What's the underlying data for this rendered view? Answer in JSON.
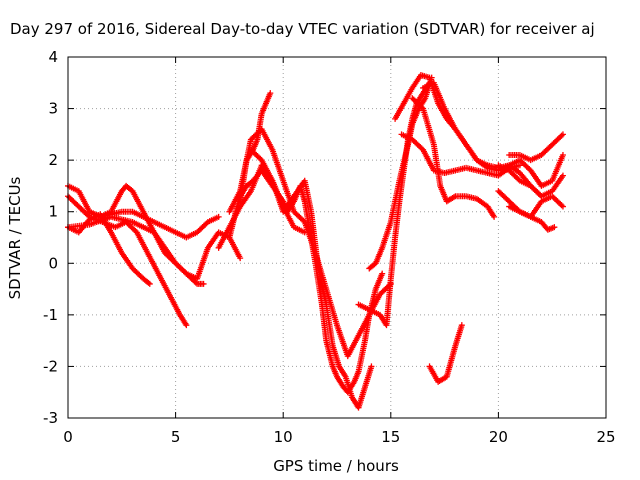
{
  "chart_data": {
    "type": "scatter",
    "title": "Day 297 of 2016, Sidereal Day-to-day VTEC variation (SDTVAR) for receiver aj",
    "xlabel": "GPS time / hours",
    "ylabel": "SDTVAR / TECUs",
    "xlim": [
      0,
      25
    ],
    "ylim": [
      -3,
      4
    ],
    "xticks": [
      "0",
      "5",
      "10",
      "15",
      "20",
      "25"
    ],
    "yticks": [
      "-3",
      "-2",
      "-1",
      "0",
      "1",
      "2",
      "3",
      "4"
    ],
    "grid": true,
    "legend": "none",
    "marker": "plus",
    "color": "#ff0000",
    "series": [
      {
        "x": [
          0.0,
          0.5,
          1.0,
          1.6,
          2.2,
          2.7,
          3.2,
          3.7,
          4.2,
          4.7,
          5.2,
          5.5
        ],
        "y": [
          1.3,
          1.1,
          0.9,
          0.8,
          0.7,
          0.8,
          0.6,
          0.2,
          -0.2,
          -0.6,
          -1.0,
          -1.2
        ]
      },
      {
        "x": [
          0.0,
          0.5,
          1.0,
          1.5,
          2.0,
          2.5,
          2.7,
          3.0,
          3.5,
          4.0,
          4.5,
          5.0,
          5.5,
          6.0,
          6.3
        ],
        "y": [
          1.5,
          1.4,
          1.0,
          0.9,
          1.0,
          1.4,
          1.5,
          1.4,
          1.0,
          0.6,
          0.3,
          0.0,
          -0.2,
          -0.4,
          -0.4
        ]
      },
      {
        "x": [
          0.0,
          0.5,
          1.0,
          1.5,
          2.0,
          2.5,
          3.0,
          3.5,
          3.8
        ],
        "y": [
          0.7,
          0.6,
          0.85,
          0.95,
          0.6,
          0.2,
          -0.1,
          -0.3,
          -0.4
        ]
      },
      {
        "x": [
          1.0,
          1.5,
          2.0,
          2.5,
          3.0,
          3.5,
          4.0,
          4.5,
          5.0,
          5.5,
          6.0,
          6.5,
          7.0
        ],
        "y": [
          1.0,
          0.9,
          0.95,
          1.0,
          1.0,
          0.9,
          0.8,
          0.7,
          0.6,
          0.5,
          0.6,
          0.8,
          0.9
        ]
      },
      {
        "x": [
          0.0,
          1.0,
          2.0,
          3.0,
          4.0,
          4.5,
          5.0,
          5.5,
          6.0,
          6.5,
          7.0,
          7.5,
          8.0
        ],
        "y": [
          0.7,
          0.75,
          0.9,
          0.8,
          0.6,
          0.2,
          0.0,
          -0.2,
          -0.3,
          0.3,
          0.6,
          0.5,
          0.1
        ]
      },
      {
        "x": [
          7.5,
          7.8,
          8.0,
          8.3,
          8.6,
          9.0,
          9.5,
          10.0,
          10.2,
          10.5,
          10.8,
          11.0,
          11.5,
          11.8,
          12.0,
          12.3,
          12.5,
          12.8,
          13.0,
          13.3,
          13.5,
          13.8,
          14.0,
          14.3,
          14.6
        ],
        "y": [
          0.5,
          1.0,
          1.3,
          1.5,
          1.6,
          1.8,
          1.5,
          1.2,
          1.0,
          1.2,
          1.5,
          1.2,
          0.0,
          -0.8,
          -1.5,
          -2.0,
          -2.2,
          -2.4,
          -2.5,
          -2.3,
          -2.1,
          -1.5,
          -1.0,
          -0.5,
          -0.2
        ]
      },
      {
        "x": [
          8.0,
          8.3,
          8.6,
          8.8,
          9.0,
          9.2,
          9.4
        ],
        "y": [
          1.2,
          2.0,
          2.2,
          2.4,
          2.9,
          3.1,
          3.3
        ]
      },
      {
        "x": [
          8.5,
          9.0,
          9.5,
          10.0,
          10.5,
          11.0,
          11.3,
          11.6,
          12.0,
          12.3,
          12.6,
          12.9,
          13.2,
          13.5,
          13.8,
          14.1
        ],
        "y": [
          2.2,
          2.0,
          1.6,
          1.0,
          1.3,
          1.6,
          1.0,
          0.0,
          -0.8,
          -1.6,
          -2.0,
          -2.2,
          -2.6,
          -2.8,
          -2.4,
          -2.0
        ]
      },
      {
        "x": [
          7.0,
          7.5,
          8.0,
          8.5,
          9.0,
          9.5,
          10.0,
          10.5,
          11.0
        ],
        "y": [
          0.3,
          0.7,
          1.1,
          1.4,
          1.9,
          1.6,
          1.1,
          0.7,
          0.6
        ]
      },
      {
        "x": [
          7.5,
          8.0,
          8.5,
          9.0,
          9.5,
          10.0,
          10.5,
          11.0,
          11.5,
          12.0,
          12.5,
          13.0,
          13.5,
          14.0,
          14.5,
          15.0
        ],
        "y": [
          1.0,
          1.4,
          2.4,
          2.6,
          2.2,
          1.6,
          1.0,
          0.8,
          0.2,
          -0.5,
          -1.2,
          -1.8,
          -1.4,
          -1.0,
          -0.6,
          -0.4
        ]
      },
      {
        "x": [
          13.5,
          14.0,
          14.5,
          14.8,
          15.0,
          15.2,
          15.4,
          15.6,
          15.8,
          16.0,
          16.2,
          16.5,
          16.8
        ],
        "y": [
          -0.8,
          -0.9,
          -1.0,
          -1.2,
          -0.3,
          0.5,
          1.2,
          1.8,
          2.4,
          2.8,
          3.1,
          3.3,
          3.5
        ]
      },
      {
        "x": [
          14.0,
          14.3,
          14.6,
          15.0,
          15.4,
          15.8,
          16.0,
          16.3,
          16.6,
          16.9
        ],
        "y": [
          -0.1,
          0.0,
          0.3,
          0.8,
          1.6,
          2.3,
          2.7,
          3.0,
          3.2,
          3.6
        ]
      },
      {
        "x": [
          15.2,
          15.6,
          16.0,
          16.4,
          16.8,
          17.2,
          17.6,
          18.0,
          18.5,
          19.0,
          19.5,
          20.0,
          20.5,
          21.0,
          21.5,
          22.0,
          22.5,
          23.0
        ],
        "y": [
          2.8,
          3.1,
          3.4,
          3.65,
          3.6,
          3.1,
          2.8,
          2.6,
          2.3,
          2.0,
          1.9,
          1.85,
          1.9,
          2.0,
          1.8,
          1.5,
          1.6,
          2.1
        ]
      },
      {
        "x": [
          15.5,
          16.0,
          16.5,
          17.0,
          17.5,
          18.0,
          18.5,
          19.0,
          19.5,
          20.0,
          20.5,
          21.0
        ],
        "y": [
          2.5,
          2.4,
          2.2,
          1.8,
          1.75,
          1.8,
          1.85,
          1.8,
          1.75,
          1.7,
          1.85,
          1.9
        ]
      },
      {
        "x": [
          16.0,
          16.5,
          17.0,
          17.3,
          17.6,
          18.0,
          18.5,
          19.0,
          19.5,
          19.8
        ],
        "y": [
          3.2,
          3.0,
          2.3,
          1.5,
          1.2,
          1.3,
          1.3,
          1.25,
          1.1,
          0.9
        ]
      },
      {
        "x": [
          16.5,
          17.0,
          17.5,
          18.0,
          18.5,
          19.0,
          19.5,
          20.0,
          20.5,
          21.0,
          21.5,
          22.0
        ],
        "y": [
          3.4,
          3.5,
          3.0,
          2.6,
          2.3,
          2.0,
          1.85,
          1.8,
          1.9,
          1.75,
          1.5,
          1.3
        ]
      },
      {
        "x": [
          20.5,
          21.0,
          21.5,
          22.0,
          22.5,
          23.0
        ],
        "y": [
          2.1,
          2.1,
          2.0,
          2.1,
          2.3,
          2.5
        ]
      },
      {
        "x": [
          20.0,
          20.5,
          21.0,
          21.5,
          22.0,
          22.5,
          23.0
        ],
        "y": [
          1.9,
          1.8,
          1.6,
          1.5,
          1.3,
          1.4,
          1.7
        ]
      },
      {
        "x": [
          20.0,
          20.5,
          21.0,
          21.5,
          22.0,
          22.5,
          23.0
        ],
        "y": [
          1.4,
          1.2,
          1.0,
          0.9,
          1.2,
          1.3,
          1.1
        ]
      },
      {
        "x": [
          20.5,
          21.0,
          21.5,
          22.0,
          22.3,
          22.6
        ],
        "y": [
          1.1,
          1.0,
          0.9,
          0.8,
          0.65,
          0.7
        ]
      },
      {
        "x": [
          16.8,
          17.2,
          17.6,
          18.0,
          18.3
        ],
        "y": [
          -2.0,
          -2.3,
          -2.2,
          -1.6,
          -1.2
        ]
      }
    ]
  }
}
